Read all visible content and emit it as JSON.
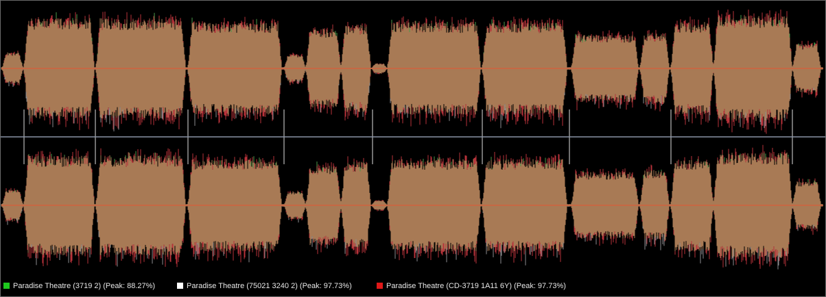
{
  "legend": [
    {
      "label": "Paradise Theatre (3719 2) (Peak: 88.27%)",
      "color": "#1ec81e"
    },
    {
      "label": "Paradise Theatre (75021 3240 2) (Peak: 97.73%)",
      "color": "#ffffff"
    },
    {
      "label": "Paradise Theatre (CD-3719 1A11 6Y) (Peak: 97.73%)",
      "color": "#e01818"
    }
  ]
}
